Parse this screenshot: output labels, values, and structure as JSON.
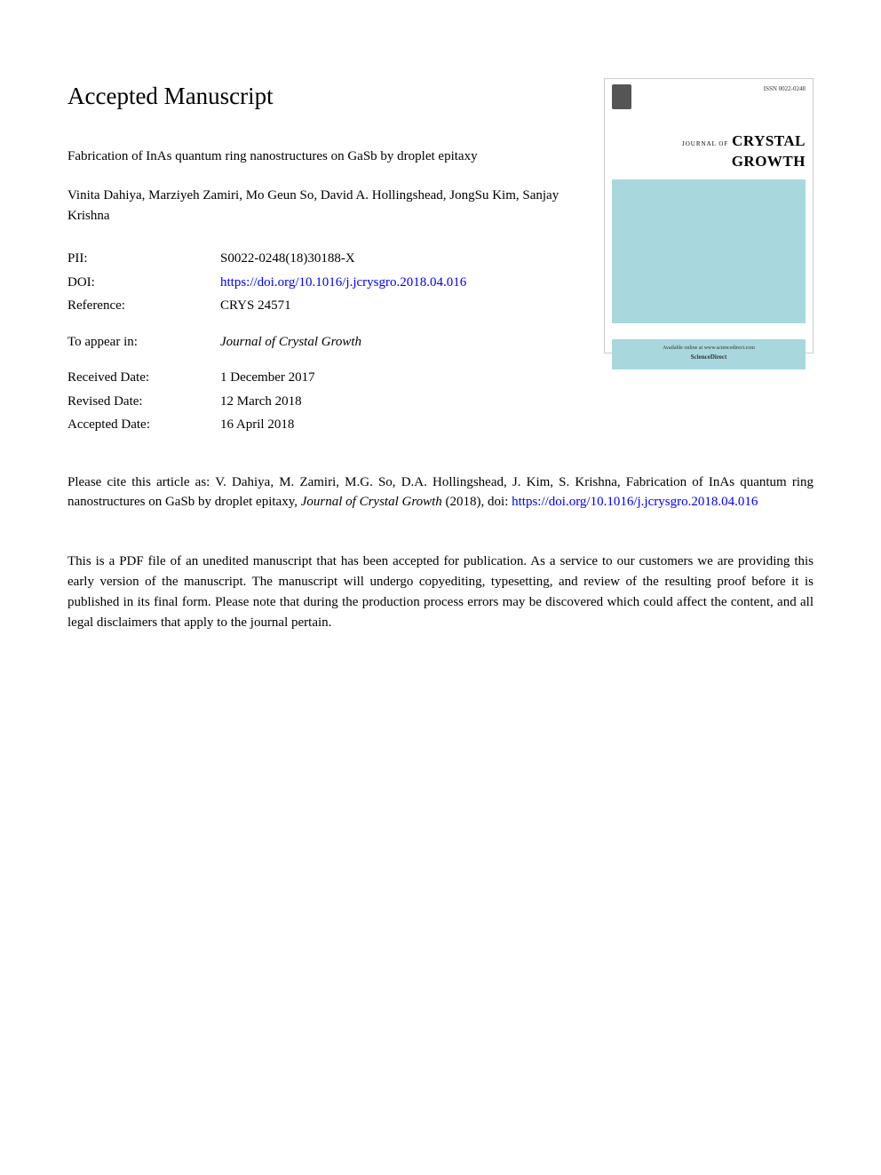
{
  "heading": "Accepted Manuscript",
  "article": {
    "title": "Fabrication of InAs quantum ring nanostructures on GaSb by droplet epitaxy",
    "authors": "Vinita Dahiya, Marziyeh Zamiri, Mo Geun So, David A. Hollingshead, JongSu Kim, Sanjay Krishna"
  },
  "metadata": {
    "pii_label": "PII:",
    "pii_value": "S0022-0248(18)30188-X",
    "doi_label": "DOI:",
    "doi_value": "https://doi.org/10.1016/j.jcrysgro.2018.04.016",
    "reference_label": "Reference:",
    "reference_value": "CRYS 24571",
    "appear_label": "To appear in:",
    "appear_value": "Journal of Crystal Growth",
    "received_label": "Received Date:",
    "received_value": "1 December 2017",
    "revised_label": "Revised Date:",
    "revised_value": "12 March 2018",
    "accepted_label": "Accepted Date:",
    "accepted_value": "16 April 2018"
  },
  "cover": {
    "issn": "ISSN 0022-0248",
    "journal_of": "JOURNAL OF",
    "crystal": "CRYSTAL",
    "growth": "GROWTH",
    "footer_line1": "Available online at www.sciencedirect.com",
    "footer_line2": "ScienceDirect"
  },
  "citation": {
    "prefix": "Please cite this article as: V. Dahiya, M. Zamiri, M.G. So, D.A. Hollingshead, J. Kim, S. Krishna, Fabrication of InAs quantum ring nanostructures on GaSb by droplet epitaxy, ",
    "journal": "Journal of Crystal Growth",
    "year_doi": " (2018), doi: ",
    "link": "https://doi.org/10.1016/j.jcrysgro.2018.04.016"
  },
  "disclaimer": "This is a PDF file of an unedited manuscript that has been accepted for publication. As a service to our customers we are providing this early version of the manuscript. The manuscript will undergo copyediting, typesetting, and review of the resulting proof before it is published in its final form. Please note that during the production process errors may be discovered which could affect the content, and all legal disclaimers that apply to the journal pertain.",
  "colors": {
    "link": "#0000ee",
    "cover_blue": "#a8d8dd",
    "text": "#000000"
  }
}
